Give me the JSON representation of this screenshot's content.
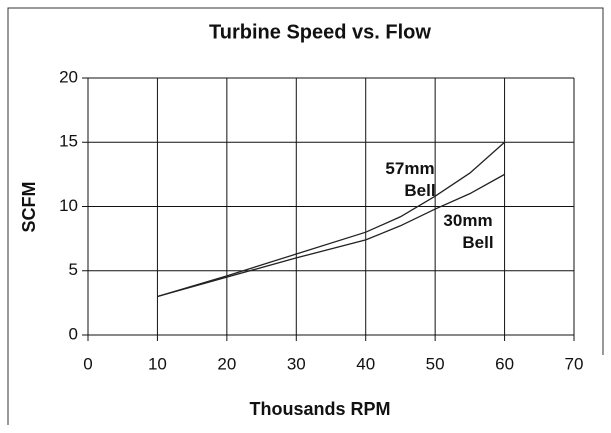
{
  "chart_data": {
    "type": "line",
    "title": "Turbine Speed vs. Flow",
    "x_label": "Thousands RPM",
    "y_label": "SCFM",
    "x": [
      10,
      20,
      30,
      40,
      45,
      50,
      55,
      60
    ],
    "series": [
      {
        "name": "57mm Bell",
        "color": "#222222",
        "values": [
          3,
          4.6,
          6.3,
          8,
          9.2,
          10.8,
          12.6,
          15
        ]
      },
      {
        "name": "30mm Bell",
        "color": "#222222",
        "values": [
          3,
          4.5,
          6.0,
          7.4,
          8.5,
          9.8,
          11.0,
          12.5
        ]
      }
    ],
    "xlim": [
      0,
      70
    ],
    "xticks": [
      0,
      10,
      20,
      30,
      40,
      50,
      60,
      70
    ],
    "ylim": [
      0,
      20
    ],
    "yticks": [
      0,
      5,
      10,
      15,
      20
    ],
    "grid": true
  }
}
